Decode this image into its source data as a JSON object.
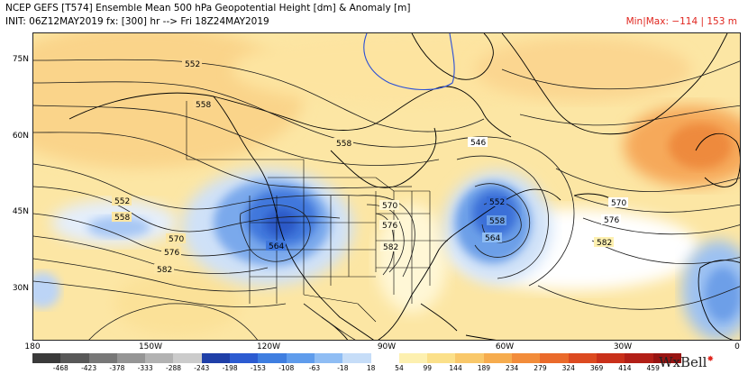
{
  "header": {
    "line1": "NCEP GEFS [T574] Ensemble Mean 500 hPa Geopotential Height [dm] & Anomaly [m]",
    "line2": "INIT: 06Z12MAY2019 fx: [300] hr --> Fri 18Z24MAY2019",
    "minmax": "Min|Max: −114 | 153 m"
  },
  "axes": {
    "lat_labels": [
      "75N",
      "60N",
      "45N",
      "30N"
    ],
    "lon_labels": [
      "180",
      "150W",
      "120W",
      "90W",
      "60W",
      "30W",
      "0"
    ]
  },
  "contour_labels": [
    "552",
    "558",
    "558",
    "552",
    "558",
    "570",
    "576",
    "582",
    "564",
    "570",
    "576",
    "582",
    "546",
    "552",
    "558",
    "564",
    "570",
    "576",
    "582"
  ],
  "colorbar": {
    "colors": [
      "#3a3a3a",
      "#585858",
      "#777777",
      "#959595",
      "#b2b2b2",
      "#cbcbcb",
      "#1f3fa8",
      "#2c5bd1",
      "#3f7ee0",
      "#5f9cec",
      "#8fbdf4",
      "#c6ddf8",
      "#ffffff",
      "#fdf0b0",
      "#fbe08a",
      "#f9c86a",
      "#f6ac4e",
      "#f28c3a",
      "#ea6a2b",
      "#dc4a20",
      "#c9301a",
      "#b21f17",
      "#981412"
    ],
    "ticks": [
      "-468",
      "-423",
      "-378",
      "-333",
      "-288",
      "-243",
      "-198",
      "-153",
      "-108",
      "-63",
      "-18",
      "18",
      "54",
      "99",
      "144",
      "189",
      "234",
      "279",
      "324",
      "369",
      "414",
      "459"
    ]
  },
  "logo": "WxBell"
}
